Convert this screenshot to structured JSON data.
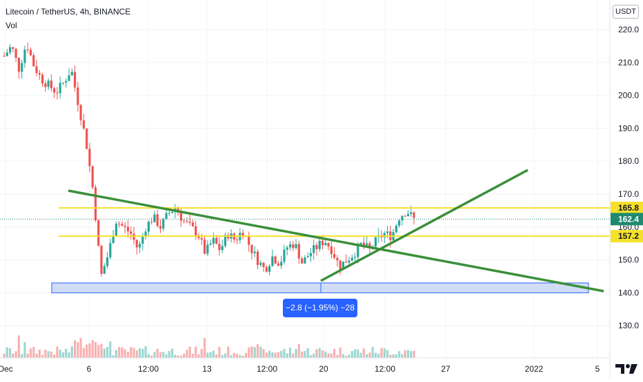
{
  "header": {
    "symbol_line": "Litecoin / TetherUS, 4h, BINANCE",
    "volume_label": "Vol"
  },
  "price_axis": {
    "currency_button": "USDT",
    "ticks": [
      "220.0",
      "210.0",
      "200.0",
      "190.0",
      "180.0",
      "170.0",
      "160.0",
      "150.0",
      "140.0",
      "130.0"
    ],
    "tag_resistance": "165.8",
    "tag_last": "162.4",
    "tag_support": "157.2"
  },
  "time_axis": {
    "labels": [
      "Dec",
      "6",
      "12:00",
      "13",
      "12:00",
      "20",
      "12:00",
      "27",
      "2022",
      "5"
    ]
  },
  "measure_label": "−2.8 (−1.95%) −28",
  "colors": {
    "up": "#26a69a",
    "down": "#ef5350",
    "level_line": "#f5e02a",
    "trend_line": "#3a8f3a",
    "last_price": "#1f8a70",
    "range_box": "#c5d5f5",
    "range_border": "#2962ff",
    "measure_box": "#2962ff"
  },
  "chart_data": {
    "type": "candlestick",
    "title": "Litecoin / TetherUS, 4h, BINANCE",
    "ylim": [
      121,
      226
    ],
    "levels": [
      165.8,
      157.2
    ],
    "last_price": 162.4,
    "support_zone": [
      140.0,
      143.0
    ],
    "price_path": [
      [
        0,
        212
      ],
      [
        1,
        215
      ],
      [
        2,
        208
      ],
      [
        3,
        216
      ],
      [
        4,
        209
      ],
      [
        5,
        205
      ],
      [
        6,
        203
      ],
      [
        7,
        201
      ],
      [
        8,
        204
      ],
      [
        9,
        208
      ],
      [
        10,
        197
      ],
      [
        11,
        186
      ],
      [
        12,
        170
      ],
      [
        13,
        145
      ],
      [
        14,
        152
      ],
      [
        15,
        162
      ],
      [
        16,
        160
      ],
      [
        17,
        158
      ],
      [
        18,
        153
      ],
      [
        19,
        160
      ],
      [
        20,
        163
      ],
      [
        21,
        160
      ],
      [
        22,
        164
      ],
      [
        23,
        166
      ],
      [
        24,
        162
      ],
      [
        25,
        160
      ],
      [
        26,
        158
      ],
      [
        27,
        152
      ],
      [
        28,
        156
      ],
      [
        29,
        153
      ],
      [
        30,
        158
      ],
      [
        31,
        156
      ],
      [
        32,
        159
      ],
      [
        33,
        154
      ],
      [
        34,
        150
      ],
      [
        35,
        147
      ],
      [
        36,
        151
      ],
      [
        37,
        149
      ],
      [
        38,
        154
      ],
      [
        39,
        155
      ],
      [
        40,
        149
      ],
      [
        41,
        152
      ],
      [
        42,
        154
      ],
      [
        43,
        156
      ],
      [
        44,
        153
      ],
      [
        45,
        148
      ],
      [
        46,
        150
      ],
      [
        47,
        152
      ],
      [
        48,
        155
      ],
      [
        49,
        153
      ],
      [
        50,
        156
      ],
      [
        51,
        158
      ],
      [
        52,
        157.2
      ],
      [
        53,
        163
      ],
      [
        54,
        165
      ],
      [
        55,
        162.4
      ]
    ]
  }
}
